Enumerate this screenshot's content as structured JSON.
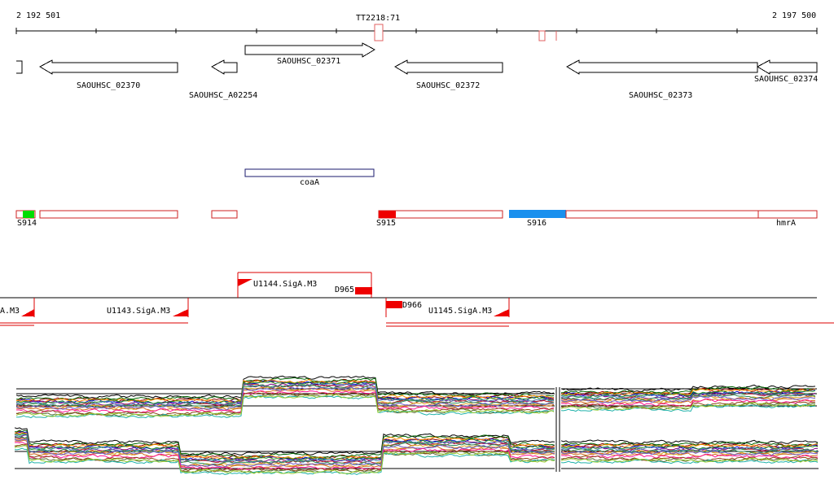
{
  "ruler": {
    "start_label": "2 192 501",
    "end_label": "2 197 500",
    "marker_label": "TT2218:71"
  },
  "genes": [
    {
      "id": "partial-left",
      "label": "",
      "strand": "-"
    },
    {
      "id": "SAOUHSC_02370",
      "label": "SAOUHSC_02370",
      "strand": "-"
    },
    {
      "id": "SAOUHSC_A02254",
      "label": "SAOUHSC_A02254",
      "strand": "-"
    },
    {
      "id": "SAOUHSC_02371",
      "label": "SAOUHSC_02371",
      "strand": "+"
    },
    {
      "id": "SAOUHSC_02372",
      "label": "SAOUHSC_02372",
      "strand": "-"
    },
    {
      "id": "SAOUHSC_02373",
      "label": "SAOUHSC_02373",
      "strand": "-"
    },
    {
      "id": "SAOUHSC_02374",
      "label": "SAOUHSC_02374",
      "strand": "-"
    }
  ],
  "annotation": {
    "label": "coaA"
  },
  "segments": {
    "labels": [
      "S914",
      "S915",
      "S916",
      "hmrA"
    ],
    "colors": {
      "green": "#00dd00",
      "red": "#ee0000",
      "blue": "#1a90ee",
      "outline": "#cc2222"
    }
  },
  "transcripts": {
    "labels": [
      "A.M3",
      "U1143.SigA.M3",
      "U1144.SigA.M3",
      "D965",
      "D966",
      "U1145.SigA.M3"
    ]
  },
  "expression": {
    "series_colors": [
      "#000000",
      "#8b0000",
      "#006400",
      "#0000cd",
      "#ff8c00",
      "#800080",
      "#228b22",
      "#b22222",
      "#4682b4",
      "#daa520",
      "#2e8b57",
      "#d2691e",
      "#6a5acd",
      "#ff1493",
      "#556b2f",
      "#8b4513",
      "#20b2aa",
      "#9acd32"
    ]
  }
}
